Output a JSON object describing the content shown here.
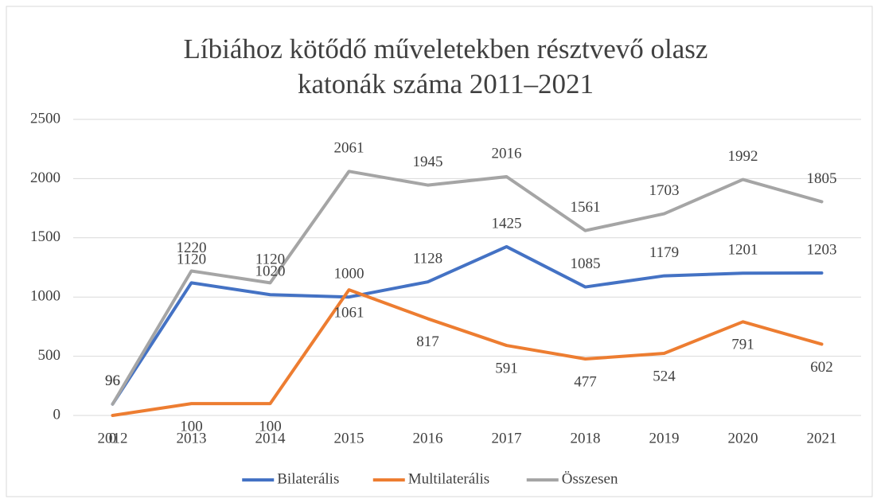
{
  "chart_data": {
    "type": "line",
    "title": "Líbiához kötődő műveletekben résztvevő olasz katonák száma 2011–2021",
    "categories": [
      "2012",
      "2013",
      "2014",
      "2015",
      "2016",
      "2017",
      "2018",
      "2019",
      "2020",
      "2021"
    ],
    "series": [
      {
        "name": "Bilaterális",
        "color": "#4472c4",
        "values": [
          96,
          1120,
          1020,
          1000,
          1128,
          1425,
          1085,
          1179,
          1201,
          1203
        ]
      },
      {
        "name": "Multilaterális",
        "color": "#ed7d31",
        "values": [
          0,
          100,
          100,
          1061,
          817,
          591,
          477,
          524,
          791,
          602
        ]
      },
      {
        "name": "Összesen",
        "color": "#a5a5a5",
        "values": [
          96,
          1220,
          1120,
          2061,
          1945,
          2016,
          1561,
          1703,
          1992,
          1805
        ]
      }
    ],
    "ylim": [
      0,
      2500
    ],
    "yticks": [
      0,
      500,
      1000,
      1500,
      2000,
      2500
    ],
    "grid": true,
    "legend": "bottom"
  }
}
